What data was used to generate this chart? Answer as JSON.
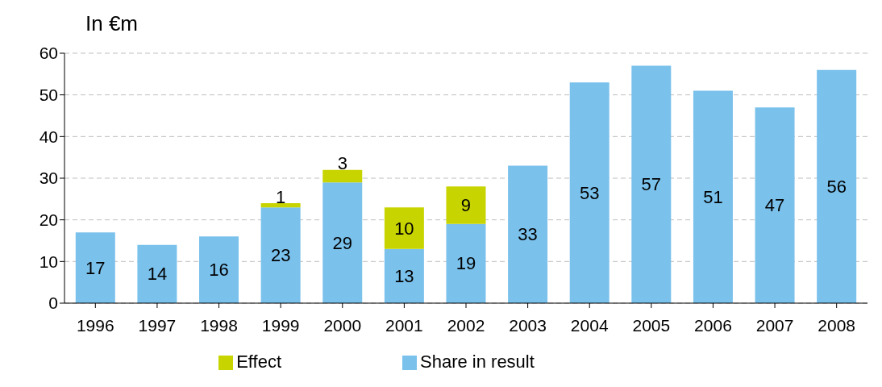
{
  "chart_data": {
    "type": "bar",
    "ylabel": "In €m",
    "categories": [
      "1996",
      "1997",
      "1998",
      "1999",
      "2000",
      "2001",
      "2002",
      "2003",
      "2004",
      "2005",
      "2006",
      "2007",
      "2008"
    ],
    "series": [
      {
        "name": "Share in result",
        "color": "#7ac1ec",
        "values": [
          17,
          14,
          16,
          23,
          29,
          13,
          19,
          33,
          53,
          57,
          51,
          47,
          56
        ]
      },
      {
        "name": "Effect",
        "color": "#c8d400",
        "values": [
          null,
          null,
          null,
          1,
          3,
          10,
          9,
          null,
          null,
          null,
          null,
          null,
          null
        ]
      }
    ],
    "stacked": true,
    "data_labels": true,
    "ylim": [
      0,
      60
    ],
    "yticks": [
      0,
      10,
      20,
      30,
      40,
      50,
      60
    ],
    "grid": "y",
    "legend": "bottom"
  }
}
